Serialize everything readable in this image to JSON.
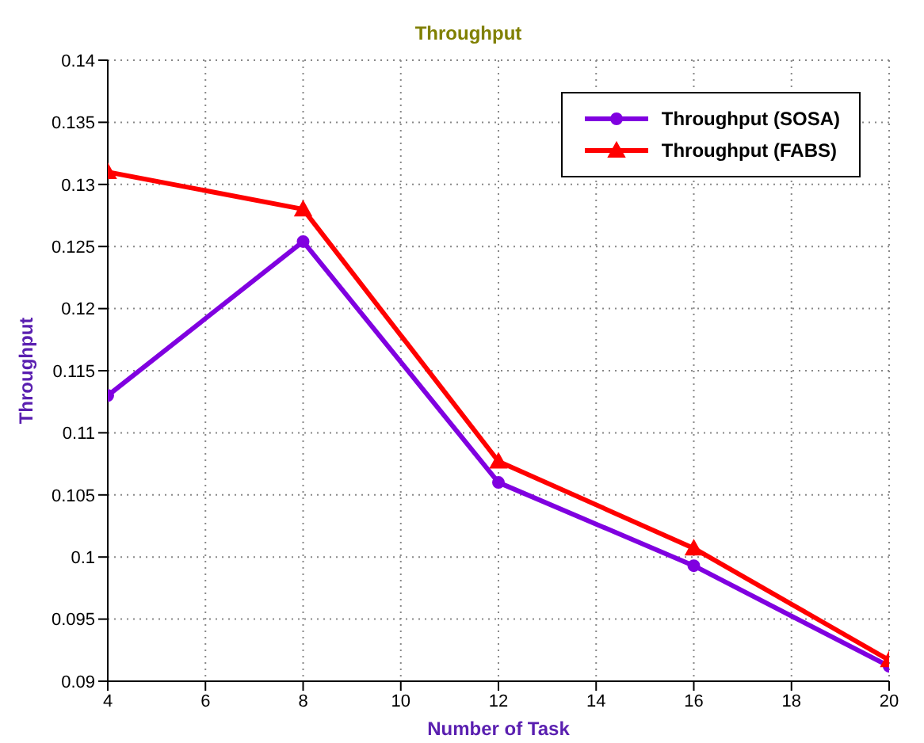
{
  "chart_data": {
    "type": "line",
    "title": "Throughput",
    "xlabel": "Number of Task",
    "ylabel": "Throughput",
    "x": [
      4,
      8,
      12,
      16,
      20
    ],
    "series": [
      {
        "name": "Throughput (SOSA)",
        "color": "#8000e0",
        "marker": "circle",
        "values": [
          0.113,
          0.1254,
          0.106,
          0.0993,
          0.0912
        ]
      },
      {
        "name": "Throughput (FABS)",
        "color": "#ff0000",
        "marker": "triangle",
        "values": [
          0.131,
          0.128,
          0.1077,
          0.1007,
          0.0917
        ]
      }
    ],
    "xlim": [
      4,
      20
    ],
    "xticks": [
      4,
      6,
      8,
      10,
      12,
      14,
      16,
      18,
      20
    ],
    "ylim": [
      0.09,
      0.14
    ],
    "yticks": [
      0.09,
      0.095,
      0.1,
      0.105,
      0.11,
      0.115,
      0.12,
      0.125,
      0.13,
      0.135,
      0.14
    ],
    "grid": true,
    "legend": "top right",
    "line_style": "solid"
  }
}
